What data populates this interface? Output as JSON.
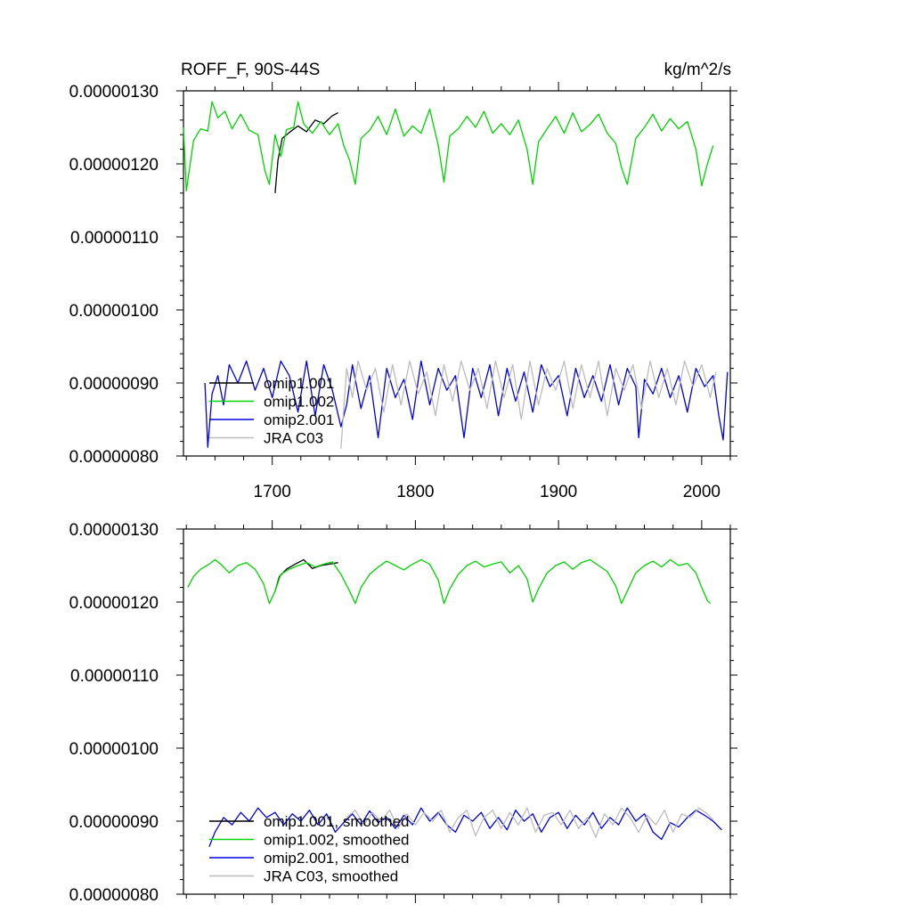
{
  "colors": {
    "axis": "#000000",
    "omip1_001": "#000000",
    "omip1_002": "#00d400",
    "omip2_001": "#0000e0",
    "jra_c03": "#bcbcbc"
  },
  "chart_data": [
    {
      "type": "line",
      "title": "ROFF_F, 90S-44S",
      "units": "kg/m^2/s",
      "xlim": [
        1638,
        2020
      ],
      "ylim": [
        8e-07,
        1.3e-06
      ],
      "grid": false,
      "legend_position": "bottom-left",
      "x_ticks": [
        1700,
        1800,
        1900,
        2000
      ],
      "x_tick_labels": [
        "1700",
        "1800",
        "1900",
        "2000"
      ],
      "y_ticks": [
        8e-07,
        9e-07,
        1e-06,
        1.1e-06,
        1.2e-06,
        1.3e-06
      ],
      "y_tick_labels": [
        "0.00000080",
        "0.00000090",
        "0.00000100",
        "0.00000110",
        "0.00000120",
        "0.00000130"
      ],
      "series": [
        {
          "name": "omip1.001",
          "color_key": "omip1_001",
          "x": [
            1702,
            1704,
            1707,
            1712,
            1718,
            1724,
            1730,
            1736,
            1742,
            1746
          ],
          "y": [
            1.16e-06,
            1.205e-06,
            1.235e-06,
            1.243e-06,
            1.252e-06,
            1.244e-06,
            1.26e-06,
            1.255e-06,
            1.266e-06,
            1.27e-06
          ]
        },
        {
          "name": "omip1.002",
          "color_key": "omip1_002",
          "x": [
            1638,
            1640,
            1645,
            1650,
            1655,
            1658,
            1662,
            1667,
            1672,
            1678,
            1684,
            1690,
            1695,
            1698,
            1702,
            1706,
            1710,
            1715,
            1718,
            1722,
            1728,
            1734,
            1740,
            1746,
            1750,
            1754,
            1758,
            1762,
            1768,
            1774,
            1780,
            1786,
            1792,
            1798,
            1804,
            1810,
            1816,
            1820,
            1824,
            1830,
            1836,
            1842,
            1848,
            1854,
            1860,
            1866,
            1872,
            1878,
            1882,
            1886,
            1892,
            1898,
            1904,
            1910,
            1916,
            1922,
            1928,
            1934,
            1940,
            1944,
            1948,
            1954,
            1960,
            1966,
            1972,
            1978,
            1984,
            1990,
            1996,
            2000,
            2004,
            2008
          ],
          "y": [
            1.25e-06,
            1.163e-06,
            1.232e-06,
            1.248e-06,
            1.245e-06,
            1.285e-06,
            1.263e-06,
            1.272e-06,
            1.248e-06,
            1.268e-06,
            1.246e-06,
            1.24e-06,
            1.19e-06,
            1.172e-06,
            1.24e-06,
            1.21e-06,
            1.247e-06,
            1.25e-06,
            1.285e-06,
            1.255e-06,
            1.242e-06,
            1.258e-06,
            1.24e-06,
            1.255e-06,
            1.225e-06,
            1.205e-06,
            1.172e-06,
            1.235e-06,
            1.246e-06,
            1.265e-06,
            1.24e-06,
            1.275e-06,
            1.238e-06,
            1.252e-06,
            1.242e-06,
            1.275e-06,
            1.225e-06,
            1.175e-06,
            1.238e-06,
            1.248e-06,
            1.265e-06,
            1.25e-06,
            1.272e-06,
            1.242e-06,
            1.255e-06,
            1.24e-06,
            1.26e-06,
            1.22e-06,
            1.172e-06,
            1.23e-06,
            1.248e-06,
            1.265e-06,
            1.242e-06,
            1.27e-06,
            1.244e-06,
            1.254e-06,
            1.268e-06,
            1.242e-06,
            1.228e-06,
            1.195e-06,
            1.172e-06,
            1.235e-06,
            1.25e-06,
            1.268e-06,
            1.245e-06,
            1.262e-06,
            1.248e-06,
            1.258e-06,
            1.22e-06,
            1.17e-06,
            1.2e-06,
            1.225e-06
          ]
        },
        {
          "name": "omip2.001",
          "color_key": "omip2_001",
          "x": [
            1653,
            1655,
            1658,
            1662,
            1666,
            1670,
            1676,
            1682,
            1688,
            1694,
            1700,
            1706,
            1712,
            1718,
            1724,
            1730,
            1736,
            1742,
            1748,
            1752,
            1756,
            1762,
            1768,
            1774,
            1780,
            1786,
            1792,
            1798,
            1804,
            1810,
            1816,
            1822,
            1828,
            1834,
            1840,
            1846,
            1852,
            1858,
            1864,
            1870,
            1876,
            1882,
            1888,
            1894,
            1900,
            1906,
            1912,
            1918,
            1924,
            1930,
            1936,
            1942,
            1948,
            1954,
            1956,
            1960,
            1966,
            1972,
            1978,
            1984,
            1990,
            1996,
            2002,
            2008,
            2012,
            2015,
            2018
          ],
          "y": [
            9e-07,
            8.12e-07,
            8.85e-07,
            9.1e-07,
            8.7e-07,
            9.25e-07,
            9e-07,
            9.3e-07,
            8.9e-07,
            9.2e-07,
            8.8e-07,
            9.3e-07,
            9.1e-07,
            8.6e-07,
            9.3e-07,
            8.55e-07,
            9.25e-07,
            8.9e-07,
            8.4e-07,
            8.7e-07,
            9.25e-07,
            8.65e-07,
            9.1e-07,
            8.25e-07,
            9.2e-07,
            8.8e-07,
            9.05e-07,
            8.5e-07,
            9.3e-07,
            8.7e-07,
            9.2e-07,
            8.9e-07,
            9.1e-07,
            8.25e-07,
            9.2e-07,
            8.8e-07,
            9.25e-07,
            8.55e-07,
            9.2e-07,
            8.75e-07,
            9.15e-07,
            8.6e-07,
            9.25e-07,
            8.95e-07,
            9.1e-07,
            8.55e-07,
            9.2e-07,
            8.8e-07,
            9.1e-07,
            8.75e-07,
            9.25e-07,
            8.7e-07,
            9.2e-07,
            8.95e-07,
            8.25e-07,
            9.05e-07,
            8.85e-07,
            9.2e-07,
            8.8e-07,
            9.1e-07,
            8.6e-07,
            9.2e-07,
            8.95e-07,
            9.1e-07,
            8.55e-07,
            8.22e-07,
            9.15e-07
          ]
        },
        {
          "name": "JRA C03",
          "color_key": "jra_c03",
          "x": [
            1748,
            1752,
            1756,
            1760,
            1766,
            1772,
            1778,
            1784,
            1790,
            1796,
            1802,
            1808,
            1814,
            1820,
            1826,
            1832,
            1838,
            1844,
            1850,
            1856,
            1862,
            1868,
            1874,
            1880,
            1886,
            1892,
            1898,
            1904,
            1910,
            1916,
            1922,
            1928,
            1934,
            1940,
            1946,
            1952,
            1958,
            1964,
            1970,
            1976,
            1982,
            1988,
            1994,
            2000,
            2006,
            2010
          ],
          "y": [
            8.1e-07,
            9.2e-07,
            8.8e-07,
            9.3e-07,
            8.9e-07,
            9.2e-07,
            8.6e-07,
            9.25e-07,
            8.7e-07,
            9.3e-07,
            8.85e-07,
            9.15e-07,
            8.55e-07,
            9.25e-07,
            8.75e-07,
            9.3e-07,
            8.9e-07,
            9.2e-07,
            8.65e-07,
            9.3e-07,
            8.8e-07,
            9.25e-07,
            8.5e-07,
            9.3e-07,
            8.7e-07,
            9.2e-07,
            8.9e-07,
            9.3e-07,
            8.65e-07,
            9.25e-07,
            8.8e-07,
            9.3e-07,
            8.55e-07,
            9.2e-07,
            8.9e-07,
            9.25e-07,
            8.65e-07,
            9.3e-07,
            8.8e-07,
            9.2e-07,
            8.7e-07,
            9.3e-07,
            8.95e-07,
            9.25e-07,
            8.8e-07,
            9.15e-07
          ]
        }
      ]
    },
    {
      "type": "line",
      "xlim": [
        1638,
        2020
      ],
      "ylim": [
        8e-07,
        1.3e-06
      ],
      "grid": false,
      "legend_position": "bottom-left",
      "x_ticks": [
        1700,
        1800,
        1900,
        2000
      ],
      "y_ticks": [
        8e-07,
        9e-07,
        1e-06,
        1.1e-06,
        1.2e-06,
        1.3e-06
      ],
      "y_tick_labels": [
        "0.00000080",
        "0.00000090",
        "0.00000100",
        "0.00000110",
        "0.00000120",
        "0.00000130"
      ],
      "series": [
        {
          "name": "omip1.001, smoothed",
          "color_key": "omip1_001",
          "x": [
            1702,
            1705,
            1710,
            1716,
            1722,
            1728,
            1734,
            1740,
            1746
          ],
          "y": [
            1.215e-06,
            1.235e-06,
            1.245e-06,
            1.252e-06,
            1.258e-06,
            1.246e-06,
            1.25e-06,
            1.252e-06,
            1.254e-06
          ]
        },
        {
          "name": "omip1.002, smoothed",
          "color_key": "omip1_002",
          "x": [
            1641,
            1645,
            1650,
            1656,
            1660,
            1664,
            1670,
            1676,
            1682,
            1688,
            1694,
            1698,
            1702,
            1706,
            1712,
            1718,
            1724,
            1730,
            1736,
            1742,
            1748,
            1754,
            1758,
            1762,
            1768,
            1774,
            1780,
            1786,
            1792,
            1798,
            1804,
            1810,
            1816,
            1820,
            1824,
            1830,
            1836,
            1842,
            1848,
            1854,
            1860,
            1866,
            1872,
            1878,
            1882,
            1886,
            1892,
            1898,
            1904,
            1910,
            1916,
            1922,
            1928,
            1934,
            1940,
            1944,
            1948,
            1954,
            1960,
            1966,
            1972,
            1978,
            1984,
            1990,
            1996,
            2000,
            2004,
            2006
          ],
          "y": [
            1.22e-06,
            1.235e-06,
            1.245e-06,
            1.252e-06,
            1.258e-06,
            1.252e-06,
            1.24e-06,
            1.25e-06,
            1.254e-06,
            1.245e-06,
            1.225e-06,
            1.198e-06,
            1.215e-06,
            1.238e-06,
            1.245e-06,
            1.25e-06,
            1.254e-06,
            1.248e-06,
            1.252e-06,
            1.255e-06,
            1.238e-06,
            1.215e-06,
            1.198e-06,
            1.22e-06,
            1.238e-06,
            1.248e-06,
            1.256e-06,
            1.25e-06,
            1.244e-06,
            1.252e-06,
            1.258e-06,
            1.252e-06,
            1.23e-06,
            1.198e-06,
            1.218e-06,
            1.238e-06,
            1.25e-06,
            1.256e-06,
            1.248e-06,
            1.252e-06,
            1.255e-06,
            1.24e-06,
            1.25e-06,
            1.232e-06,
            1.2e-06,
            1.218e-06,
            1.24e-06,
            1.25e-06,
            1.255e-06,
            1.245e-06,
            1.254e-06,
            1.258e-06,
            1.25e-06,
            1.242e-06,
            1.222e-06,
            1.198e-06,
            1.215e-06,
            1.24e-06,
            1.25e-06,
            1.256e-06,
            1.248e-06,
            1.258e-06,
            1.25e-06,
            1.253e-06,
            1.24e-06,
            1.22e-06,
            1.202e-06,
            1.198e-06
          ]
        },
        {
          "name": "omip2.001, smoothed",
          "color_key": "omip2_001",
          "x": [
            1656,
            1660,
            1666,
            1672,
            1678,
            1684,
            1690,
            1696,
            1702,
            1708,
            1714,
            1720,
            1726,
            1732,
            1738,
            1744,
            1750,
            1756,
            1762,
            1768,
            1774,
            1780,
            1786,
            1792,
            1798,
            1804,
            1810,
            1816,
            1822,
            1828,
            1834,
            1840,
            1846,
            1852,
            1858,
            1864,
            1870,
            1876,
            1882,
            1888,
            1894,
            1900,
            1906,
            1912,
            1918,
            1924,
            1930,
            1936,
            1942,
            1948,
            1954,
            1960,
            1966,
            1972,
            1978,
            1984,
            1990,
            1996,
            2002,
            2008,
            2014
          ],
          "y": [
            8.65e-07,
            8.85e-07,
            9.05e-07,
            8.95e-07,
            9.12e-07,
            9e-07,
            9.18e-07,
            9.05e-07,
            9.12e-07,
            8.95e-07,
            9.1e-07,
            9e-07,
            9.15e-07,
            8.95e-07,
            9.1e-07,
            8.85e-07,
            8.98e-07,
            9.1e-07,
            8.95e-07,
            9.14e-07,
            8.98e-07,
            9.05e-07,
            8.9e-07,
            9.08e-07,
            8.95e-07,
            9.18e-07,
            9e-07,
            9.12e-07,
            8.95e-07,
            8.85e-07,
            9.08e-07,
            9e-07,
            9.12e-07,
            8.9e-07,
            9.05e-07,
            8.88e-07,
            9.15e-07,
            9e-07,
            9.1e-07,
            8.85e-07,
            9.05e-07,
            9.12e-07,
            8.9e-07,
            9.08e-07,
            8.95e-07,
            9.12e-07,
            8.9e-07,
            9.05e-07,
            8.95e-07,
            9.18e-07,
            9e-07,
            9.1e-07,
            8.85e-07,
            8.75e-07,
            8.98e-07,
            8.92e-07,
            9.05e-07,
            9.15e-07,
            9.08e-07,
            9e-07,
            8.88e-07
          ]
        },
        {
          "name": "JRA C03, smoothed",
          "color_key": "jra_c03",
          "x": [
            1752,
            1758,
            1764,
            1770,
            1776,
            1782,
            1788,
            1794,
            1800,
            1806,
            1812,
            1818,
            1824,
            1830,
            1836,
            1842,
            1848,
            1854,
            1860,
            1866,
            1872,
            1878,
            1884,
            1890,
            1896,
            1902,
            1908,
            1914,
            1920,
            1926,
            1932,
            1938,
            1944,
            1950,
            1956,
            1962,
            1968,
            1974,
            1980,
            1986,
            1992,
            1998,
            2004,
            2008
          ],
          "y": [
            9.05e-07,
            9.15e-07,
            8.95e-07,
            9.12e-07,
            9e-07,
            9.15e-07,
            8.9e-07,
            9.1e-07,
            8.95e-07,
            9.12e-07,
            9e-07,
            9.15e-07,
            8.85e-07,
            9.05e-07,
            9.15e-07,
            8.8e-07,
            9.05e-07,
            9.15e-07,
            8.9e-07,
            9.12e-07,
            8.95e-07,
            9.18e-07,
            8.85e-07,
            9.08e-07,
            9.12e-07,
            8.95e-07,
            9.15e-07,
            8.9e-07,
            9.05e-07,
            8.78e-07,
            9.1e-07,
            8.95e-07,
            9.18e-07,
            9.05e-07,
            8.85e-07,
            9.08e-07,
            8.95e-07,
            9.15e-07,
            8.85e-07,
            9.1e-07,
            9.05e-07,
            9.18e-07,
            9.1e-07,
            9.02e-07
          ]
        }
      ]
    }
  ]
}
